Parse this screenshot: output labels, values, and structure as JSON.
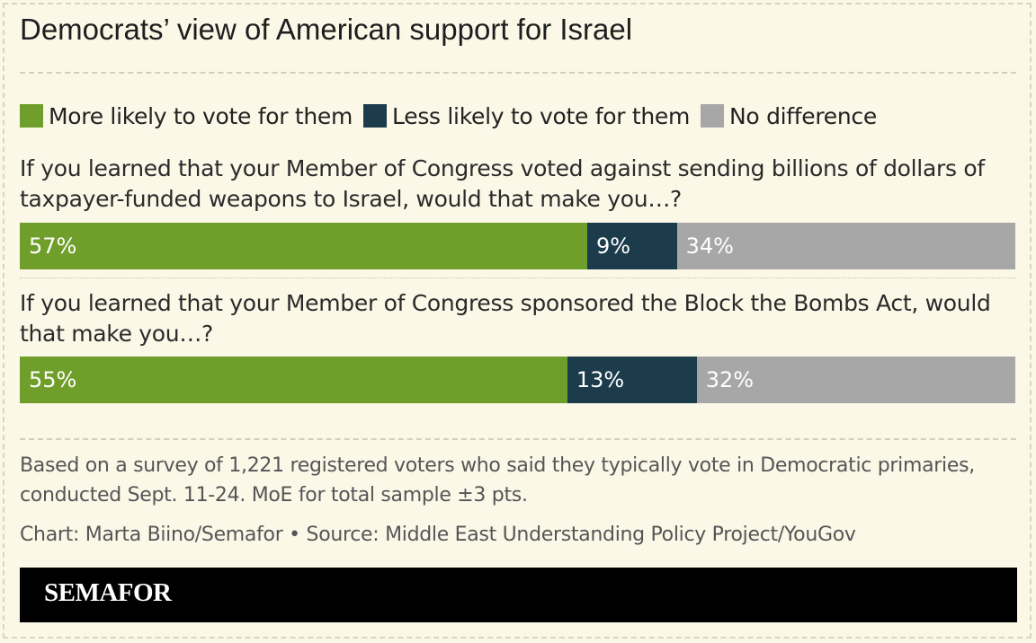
{
  "title": "Democrats’ view of American support for Israel",
  "legend": [
    {
      "label": "More likely to vote for them",
      "color": "#6f9e2a"
    },
    {
      "label": "Less likely to vote for them",
      "color": "#1c3c4c"
    },
    {
      "label": "No difference",
      "color": "#a7a7a7"
    }
  ],
  "chart_data": {
    "type": "bar",
    "orientation": "horizontal",
    "stacked": true,
    "unit": "%",
    "categories": [
      "If you learned that your Member of Congress voted against sending billions of dollars of taxpayer-funded weapons to Israel, would that make you…?",
      "If you learned that your Member of Congress sponsored the Block the Bombs Act, would that make you…?"
    ],
    "series": [
      {
        "name": "More likely to vote for them",
        "values": [
          57,
          55
        ],
        "labels": [
          "57%",
          "55%"
        ],
        "color": "#6f9e2a"
      },
      {
        "name": "Less likely to vote for them",
        "values": [
          9,
          13
        ],
        "labels": [
          "9%",
          "13%"
        ],
        "color": "#1c3c4c"
      },
      {
        "name": "No difference",
        "values": [
          34,
          32
        ],
        "labels": [
          "34%",
          "32%"
        ],
        "color": "#a7a7a7"
      }
    ],
    "xlim": [
      0,
      100
    ],
    "legend_position": "top"
  },
  "notes": {
    "survey": "Based on a survey of 1,221 registered voters who said they typically vote in Democratic primaries, conducted Sept. 11-24. MoE for total sample ±3 pts.",
    "credit": "Chart: Marta Biino/Semafor • Source: Middle East Understanding Policy Project/YouGov"
  },
  "brand": "SEMAFOR"
}
